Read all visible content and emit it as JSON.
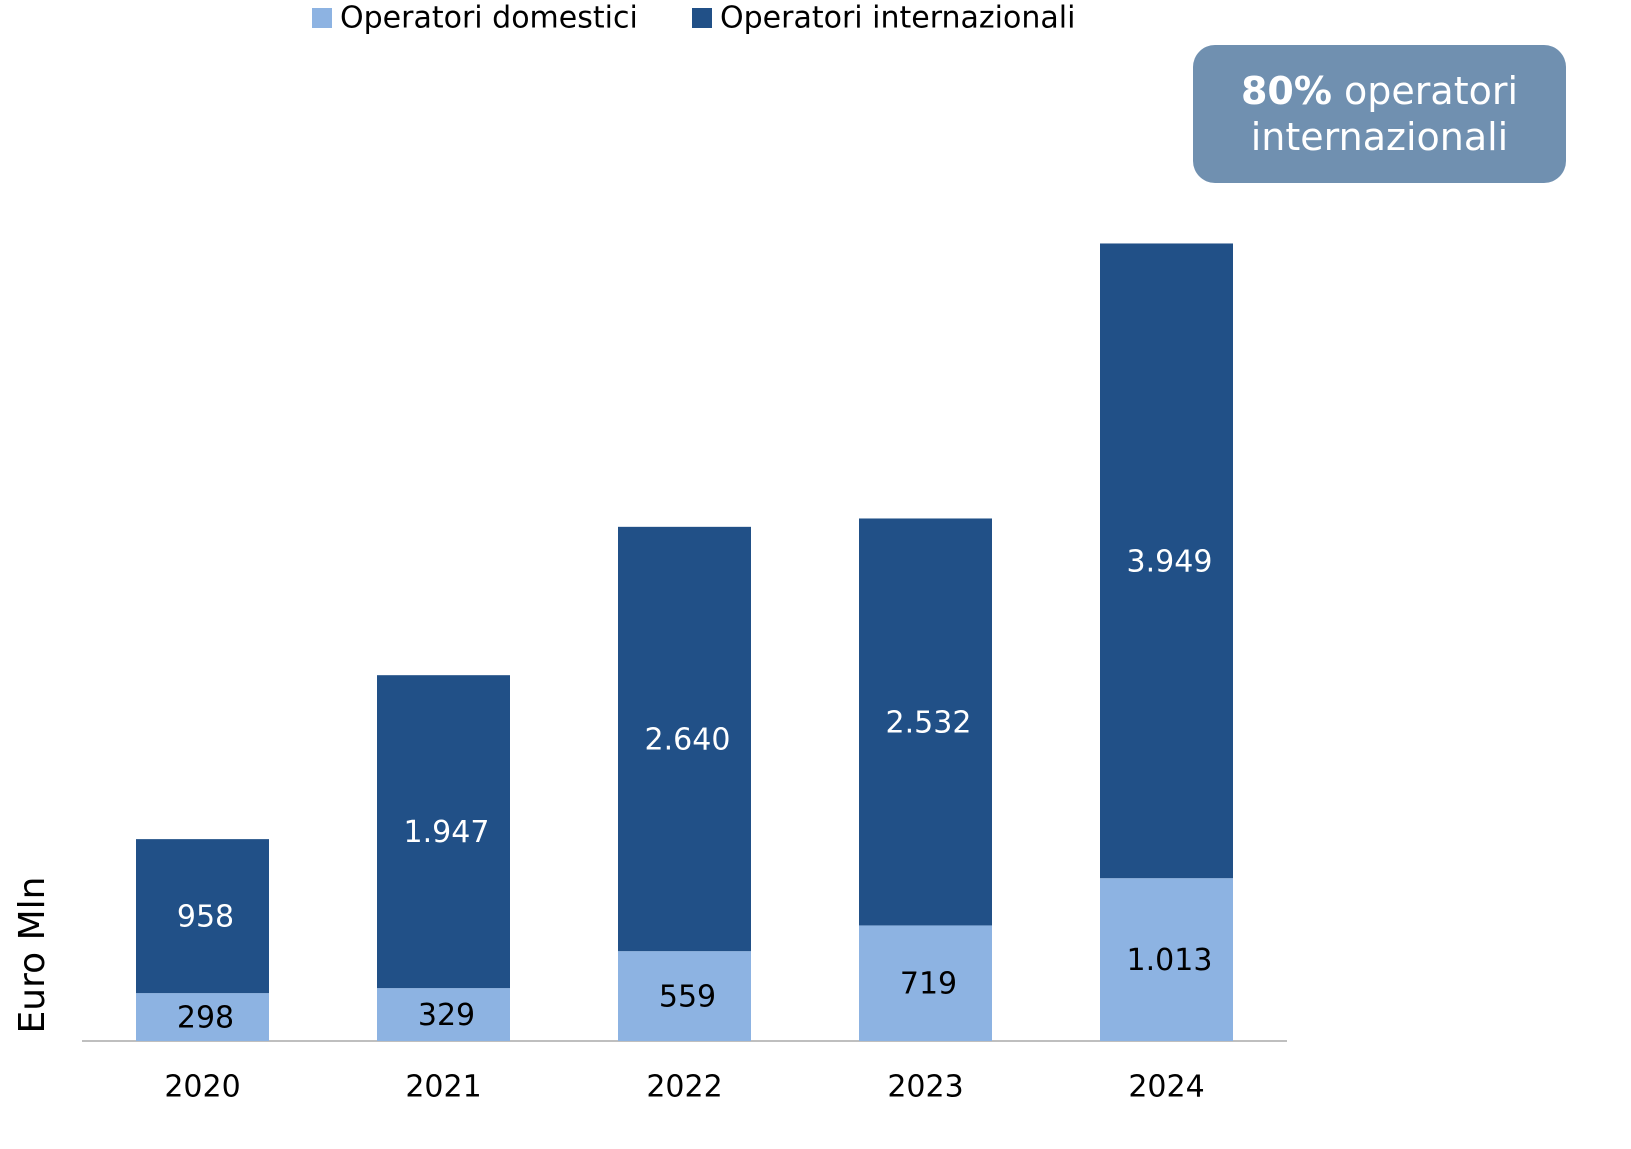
{
  "chart_data": {
    "type": "stacked_bar",
    "categories": [
      "2020",
      "2021",
      "2022",
      "2023",
      "2024"
    ],
    "series": [
      {
        "name": "Operatori domestici",
        "color": "#8db3e2",
        "values": [
          298,
          329,
          559,
          719,
          1013
        ],
        "value_labels": [
          "298",
          "329",
          "559",
          "719",
          "1.013"
        ],
        "label_color": "#000000"
      },
      {
        "name": "Operatori internazionali",
        "color": "#215087",
        "values": [
          958,
          1947,
          2640,
          2532,
          3949
        ],
        "value_labels": [
          "958",
          "1.947",
          "2.640",
          "2.532",
          "3.949"
        ],
        "label_color": "#ffffff"
      }
    ],
    "ylabel": "Euro Mln",
    "ylim": [
      0,
      5500
    ],
    "legend": "top",
    "annotation": {
      "highlight": "80%",
      "text": "operatori internazionali"
    }
  }
}
